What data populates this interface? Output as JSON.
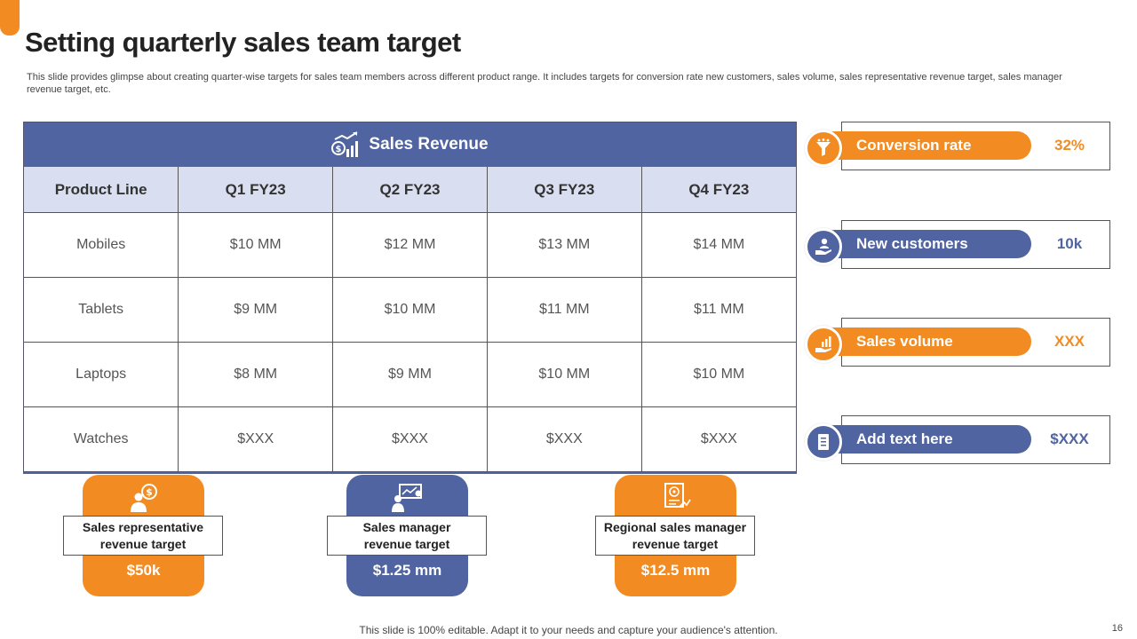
{
  "title": "Setting quarterly sales team target",
  "subtitle": "This slide provides glimpse about creating quarter-wise targets for sales team members across different product range. It includes targets for conversion rate new customers, sales volume, sales representative revenue target, sales manager revenue target, etc.",
  "table": {
    "header_title": "Sales Revenue",
    "header_icon": "revenue-chart-icon",
    "columns": [
      "Product Line",
      "Q1 FY23",
      "Q2 FY23",
      "Q3 FY23",
      "Q4 FY23"
    ],
    "rows": [
      [
        "Mobiles",
        "$10 MM",
        "$12 MM",
        "$13 MM",
        "$14 MM"
      ],
      [
        "Tablets",
        "$9 MM",
        "$10 MM",
        "$11 MM",
        "$11 MM"
      ],
      [
        "Laptops",
        "$8 MM",
        "$9 MM",
        "$10 MM",
        "$10 MM"
      ],
      [
        "Watches",
        "$XXX",
        "$XXX",
        "$XXX",
        "$XXX"
      ]
    ]
  },
  "metrics": [
    {
      "label": "Conversion rate",
      "value": "32%",
      "color": "#f28c22",
      "icon": "funnel-icon"
    },
    {
      "label": "New customers",
      "value": "10k",
      "color": "#4f64a0",
      "icon": "customer-hand-icon"
    },
    {
      "label": "Sales volume",
      "value": "XXX",
      "color": "#f28c22",
      "icon": "sales-growth-icon"
    },
    {
      "label": "Add text here",
      "value": "$XXX",
      "color": "#4f64a0",
      "icon": "document-icon"
    }
  ],
  "cards": [
    {
      "label_line1": "Sales representative",
      "label_line2": "revenue target",
      "amount": "$50k",
      "color": "#f28c22",
      "icon": "representative-dollar-icon"
    },
    {
      "label_line1": "Sales manager",
      "label_line2": "revenue target",
      "amount": "$1.25 mm",
      "color": "#4f64a0",
      "icon": "manager-presentation-icon"
    },
    {
      "label_line1": "Regional sales manager",
      "label_line2": "revenue target",
      "amount": "$12.5 mm",
      "color": "#f28c22",
      "icon": "target-report-icon"
    }
  ],
  "footer": "This slide is 100% editable. Adapt it to your needs and capture your audience's attention.",
  "page_number": "16",
  "colors": {
    "orange": "#f28c22",
    "blue": "#4f64a0",
    "header_row": "#d9dff0"
  }
}
